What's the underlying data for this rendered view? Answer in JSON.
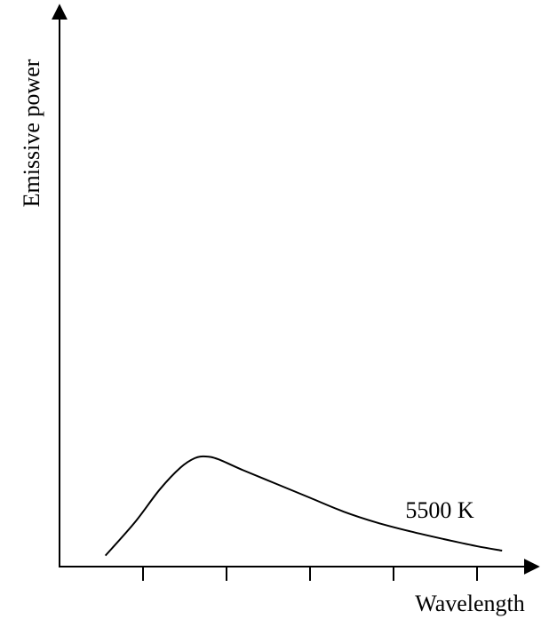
{
  "chart_data": {
    "type": "line",
    "title": "",
    "xlabel": "Wavelength",
    "ylabel": "Emissive power",
    "xlim": [
      0,
      5.5
    ],
    "ylim": [
      0,
      1
    ],
    "x_ticks": [
      1,
      2,
      3,
      4,
      5
    ],
    "grid": false,
    "curve_annotation": "5500 K",
    "series": [
      {
        "name": "5500 K",
        "points": [
          [
            0.55,
            0.02
          ],
          [
            0.9,
            0.08
          ],
          [
            1.2,
            0.14
          ],
          [
            1.45,
            0.18
          ],
          [
            1.62,
            0.197
          ],
          [
            1.75,
            0.2
          ],
          [
            1.9,
            0.195
          ],
          [
            2.2,
            0.175
          ],
          [
            2.6,
            0.15
          ],
          [
            3.0,
            0.125
          ],
          [
            3.4,
            0.1
          ],
          [
            3.8,
            0.08
          ],
          [
            4.2,
            0.064
          ],
          [
            4.6,
            0.05
          ],
          [
            5.0,
            0.037
          ],
          [
            5.3,
            0.029
          ]
        ]
      }
    ]
  },
  "colors": {
    "line": "#000000",
    "background": "#ffffff"
  }
}
